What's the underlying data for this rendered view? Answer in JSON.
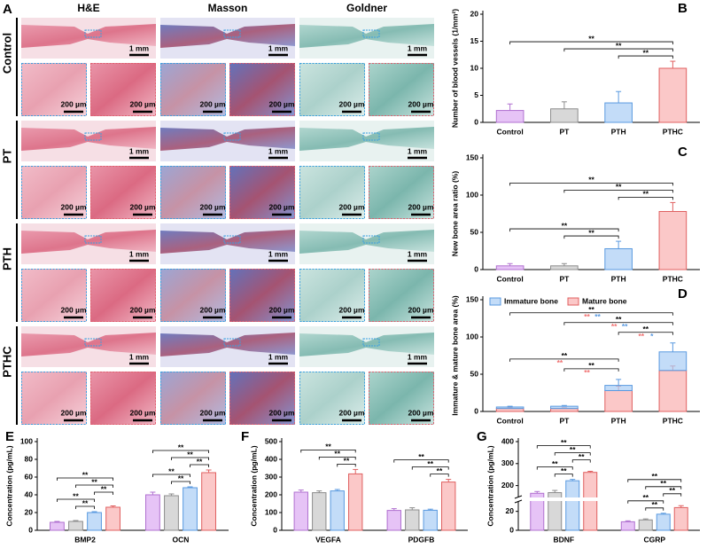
{
  "histology": {
    "panel": "A",
    "columns": [
      "H&E",
      "Masson",
      "Goldner"
    ],
    "rows": [
      "Control",
      "PT",
      "PTH",
      "PTHC"
    ],
    "scale_overview": "1 mm",
    "scale_zoom": "200 µm"
  },
  "chart_data": [
    {
      "panel": "B",
      "type": "bar",
      "categories": [
        "Control",
        "PT",
        "PTH",
        "PTHC"
      ],
      "values": [
        2.2,
        2.5,
        3.6,
        10
      ],
      "errors": [
        1.2,
        1.3,
        2.1,
        1.3
      ],
      "colors": [
        "#dcaaf2",
        "#c8c8c8",
        "#a9cdf5",
        "#f9b1b1"
      ],
      "edge_colors": [
        "#b070d0",
        "#8c8c8c",
        "#5a9ae0",
        "#e06060"
      ],
      "ylabel": "Number of blood vessels (1/mm²)",
      "ylim": [
        0,
        20
      ],
      "yticks": [
        0,
        5,
        10,
        15,
        20
      ],
      "significance": [
        {
          "pair": [
            2,
            3
          ],
          "label": "**"
        },
        {
          "pair": [
            1,
            3
          ],
          "label": "**"
        },
        {
          "pair": [
            0,
            3
          ],
          "label": "**"
        }
      ]
    },
    {
      "panel": "C",
      "type": "bar",
      "categories": [
        "Control",
        "PT",
        "PTH",
        "PTHC"
      ],
      "values": [
        5,
        5,
        28,
        78
      ],
      "errors": [
        3,
        3,
        10,
        12
      ],
      "colors": [
        "#dcaaf2",
        "#c8c8c8",
        "#a9cdf5",
        "#f9b1b1"
      ],
      "edge_colors": [
        "#b070d0",
        "#8c8c8c",
        "#5a9ae0",
        "#e06060"
      ],
      "ylabel": "New bone area ratio (%)",
      "ylim": [
        0,
        150
      ],
      "yticks": [
        0,
        50,
        100,
        150
      ],
      "significance": [
        {
          "pair": [
            1,
            2
          ],
          "label": "**"
        },
        {
          "pair": [
            0,
            2
          ],
          "label": "**"
        },
        {
          "pair": [
            2,
            3
          ],
          "label": "**"
        },
        {
          "pair": [
            1,
            3
          ],
          "label": "**"
        },
        {
          "pair": [
            0,
            3
          ],
          "label": "**"
        }
      ]
    },
    {
      "panel": "D",
      "type": "stacked_bar",
      "categories": [
        "Control",
        "PT",
        "PTH",
        "PTHC"
      ],
      "series": [
        {
          "name": "Mature bone",
          "color": "#f9b1b1",
          "edge": "#e06060",
          "values": [
            4,
            4,
            28,
            55
          ],
          "errors": [
            1,
            1,
            6,
            6
          ]
        },
        {
          "name": "Immature bone",
          "color": "#a9cdf5",
          "edge": "#5a9ae0",
          "values": [
            2,
            3,
            7,
            25
          ],
          "errors": [
            1,
            1,
            8,
            12
          ]
        }
      ],
      "legend_order": [
        1,
        0
      ],
      "ylabel": "Immature & mature bone area (%)",
      "ylim": [
        0,
        150
      ],
      "yticks": [
        0,
        50,
        100,
        150
      ],
      "significance": [
        {
          "pair": [
            1,
            2
          ],
          "label": "**",
          "mature": "**"
        },
        {
          "pair": [
            0,
            2
          ],
          "label": "**",
          "mature": "**"
        },
        {
          "pair": [
            2,
            3
          ],
          "label": "**",
          "mature": "**",
          "immature": "*"
        },
        {
          "pair": [
            1,
            3
          ],
          "label": "**",
          "mature": "**",
          "immature": "**"
        },
        {
          "pair": [
            0,
            3
          ],
          "label": "**",
          "mature": "**",
          "immature": "**"
        }
      ]
    },
    {
      "panel": "E",
      "type": "grouped_bar",
      "categories": [
        "BMP2",
        "OCN"
      ],
      "series": [
        {
          "color": "#dcaaf2",
          "edge": "#b070d0",
          "values": [
            9,
            40
          ],
          "errors": [
            1,
            3
          ]
        },
        {
          "color": "#c8c8c8",
          "edge": "#8c8c8c",
          "values": [
            10,
            39
          ],
          "errors": [
            1,
            2
          ]
        },
        {
          "color": "#a9cdf5",
          "edge": "#5a9ae0",
          "values": [
            20,
            48
          ],
          "errors": [
            1,
            1
          ]
        },
        {
          "color": "#f9b1b1",
          "edge": "#e06060",
          "values": [
            26,
            65
          ],
          "errors": [
            1.5,
            3
          ]
        }
      ],
      "ylabel": "Concentration (pg/mL)",
      "ylim": [
        0,
        100
      ],
      "yticks": [
        0,
        20,
        40,
        60,
        80,
        100
      ],
      "significance": [
        {
          "category": 0,
          "pair": [
            1,
            2
          ],
          "label": "**"
        },
        {
          "category": 0,
          "pair": [
            0,
            2
          ],
          "label": "**"
        },
        {
          "category": 0,
          "pair": [
            2,
            3
          ],
          "label": "**"
        },
        {
          "category": 0,
          "pair": [
            1,
            3
          ],
          "label": "**"
        },
        {
          "category": 0,
          "pair": [
            0,
            3
          ],
          "label": "**"
        },
        {
          "category": 1,
          "pair": [
            1,
            2
          ],
          "label": "**"
        },
        {
          "category": 1,
          "pair": [
            0,
            2
          ],
          "label": "**"
        },
        {
          "category": 1,
          "pair": [
            2,
            3
          ],
          "label": "**"
        },
        {
          "category": 1,
          "pair": [
            1,
            3
          ],
          "label": "**"
        },
        {
          "category": 1,
          "pair": [
            0,
            3
          ],
          "label": "**"
        }
      ]
    },
    {
      "panel": "F",
      "type": "grouped_bar",
      "categories": [
        "VEGFA",
        "PDGFB"
      ],
      "series": [
        {
          "color": "#dcaaf2",
          "edge": "#b070d0",
          "values": [
            215,
            112
          ],
          "errors": [
            12,
            10
          ]
        },
        {
          "color": "#c8c8c8",
          "edge": "#8c8c8c",
          "values": [
            212,
            115
          ],
          "errors": [
            10,
            12
          ]
        },
        {
          "color": "#a9cdf5",
          "edge": "#5a9ae0",
          "values": [
            222,
            113
          ],
          "errors": [
            8,
            6
          ]
        },
        {
          "color": "#f9b1b1",
          "edge": "#e06060",
          "values": [
            318,
            272
          ],
          "errors": [
            25,
            15
          ]
        }
      ],
      "ylabel": "Concentration (pg/mL)",
      "ylim": [
        0,
        500
      ],
      "yticks": [
        0,
        100,
        200,
        300,
        400,
        500
      ],
      "significance": [
        {
          "category": 0,
          "pair": [
            2,
            3
          ],
          "label": "**"
        },
        {
          "category": 0,
          "pair": [
            1,
            3
          ],
          "label": "**"
        },
        {
          "category": 0,
          "pair": [
            0,
            3
          ],
          "label": "**"
        },
        {
          "category": 1,
          "pair": [
            2,
            3
          ],
          "label": "**"
        },
        {
          "category": 1,
          "pair": [
            1,
            3
          ],
          "label": "**"
        },
        {
          "category": 1,
          "pair": [
            0,
            3
          ],
          "label": "**"
        }
      ]
    },
    {
      "panel": "G",
      "type": "grouped_bar",
      "categories": [
        "BDNF",
        "CGRP"
      ],
      "series": [
        {
          "color": "#dcaaf2",
          "edge": "#b070d0",
          "values": [
            165,
            9
          ],
          "errors": [
            8,
            1
          ]
        },
        {
          "color": "#c8c8c8",
          "edge": "#8c8c8c",
          "values": [
            168,
            11
          ],
          "errors": [
            10,
            1
          ]
        },
        {
          "color": "#a9cdf5",
          "edge": "#5a9ae0",
          "values": [
            222,
            17
          ],
          "errors": [
            6,
            1
          ]
        },
        {
          "color": "#f9b1b1",
          "edge": "#e06060",
          "values": [
            260,
            24
          ],
          "errors": [
            5,
            2
          ]
        }
      ],
      "ylabel": "Concentration (pg/mL)",
      "ylim": [
        0,
        400
      ],
      "ybreak": [
        30,
        150
      ],
      "yticks": [
        0,
        20,
        200,
        300,
        400
      ],
      "significance": [
        {
          "category": 0,
          "pair": [
            1,
            2
          ],
          "label": "**"
        },
        {
          "category": 0,
          "pair": [
            0,
            2
          ],
          "label": "**"
        },
        {
          "category": 0,
          "pair": [
            2,
            3
          ],
          "label": "**"
        },
        {
          "category": 0,
          "pair": [
            1,
            3
          ],
          "label": "**"
        },
        {
          "category": 0,
          "pair": [
            0,
            3
          ],
          "label": "**"
        },
        {
          "category": 1,
          "pair": [
            1,
            2
          ],
          "label": "**"
        },
        {
          "category": 1,
          "pair": [
            0,
            2
          ],
          "label": "**"
        },
        {
          "category": 1,
          "pair": [
            2,
            3
          ],
          "label": "**"
        },
        {
          "category": 1,
          "pair": [
            1,
            3
          ],
          "label": "**"
        },
        {
          "category": 1,
          "pair": [
            0,
            3
          ],
          "label": "**"
        }
      ]
    }
  ]
}
